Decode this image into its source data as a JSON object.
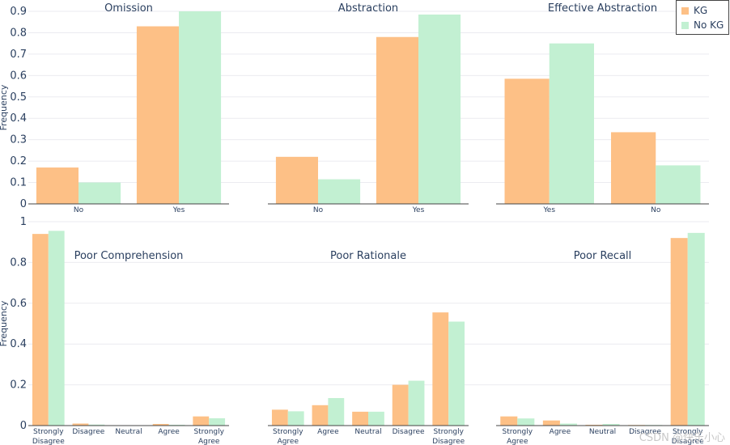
{
  "colors": {
    "kg": "#fdc086",
    "nokg": "#c2f0d2",
    "grid": "#ebebf0",
    "axis": "#2a3f5f"
  },
  "legend": {
    "kg": "KG",
    "nokg": "No KG"
  },
  "watermark": "CSDN @快乐小心",
  "chart_data": [
    {
      "type": "bar",
      "title": "Omission",
      "ylabel": "Frequency",
      "ylim": [
        0,
        0.9
      ],
      "yticks": [
        "0",
        "0.1",
        "0.2",
        "0.3",
        "0.4",
        "0.5",
        "0.6",
        "0.7",
        "0.8",
        "0.9"
      ],
      "categories": [
        "No",
        "Yes"
      ],
      "series": [
        {
          "name": "KG",
          "values": [
            0.17,
            0.83
          ]
        },
        {
          "name": "No KG",
          "values": [
            0.1,
            0.9
          ]
        }
      ]
    },
    {
      "type": "bar",
      "title": "Abstraction",
      "ylabel": "",
      "ylim": [
        0,
        0.9
      ],
      "categories": [
        "No",
        "Yes"
      ],
      "series": [
        {
          "name": "KG",
          "values": [
            0.22,
            0.78
          ]
        },
        {
          "name": "No KG",
          "values": [
            0.115,
            0.885
          ]
        }
      ]
    },
    {
      "type": "bar",
      "title": "Effective Abstraction",
      "ylabel": "",
      "ylim": [
        0,
        0.9
      ],
      "categories": [
        "Yes",
        "No"
      ],
      "series": [
        {
          "name": "KG",
          "values": [
            0.585,
            0.335
          ]
        },
        {
          "name": "No KG",
          "values": [
            0.75,
            0.18
          ]
        }
      ]
    },
    {
      "type": "bar",
      "title": "Poor Comprehension",
      "ylabel": "Frequency",
      "ylim": [
        0,
        1
      ],
      "yticks": [
        "0",
        "0.2",
        "0.4",
        "0.6",
        "0.8",
        "1"
      ],
      "categories": [
        "Strongly Disagree",
        "Disagree",
        "Neutral",
        "Agree",
        "Strongly Agree"
      ],
      "series": [
        {
          "name": "KG",
          "values": [
            0.94,
            0.01,
            0.0,
            0.008,
            0.045
          ]
        },
        {
          "name": "No KG",
          "values": [
            0.955,
            0.005,
            0.0,
            0.004,
            0.036
          ]
        }
      ]
    },
    {
      "type": "bar",
      "title": "Poor Rationale",
      "ylabel": "",
      "ylim": [
        0,
        1
      ],
      "categories": [
        "Strongly Agree",
        "Agree",
        "Neutral",
        "Disagree",
        "Strongly Disagree"
      ],
      "series": [
        {
          "name": "KG",
          "values": [
            0.078,
            0.1,
            0.068,
            0.2,
            0.555
          ]
        },
        {
          "name": "No KG",
          "values": [
            0.07,
            0.135,
            0.068,
            0.22,
            0.51
          ]
        }
      ]
    },
    {
      "type": "bar",
      "title": "Poor Recall",
      "ylabel": "",
      "ylim": [
        0,
        1
      ],
      "categories": [
        "Strongly Agree",
        "Agree",
        "Neutral",
        "Disagree",
        "Strongly Disagree"
      ],
      "series": [
        {
          "name": "KG",
          "values": [
            0.045,
            0.025,
            0.004,
            0.003,
            0.92
          ]
        },
        {
          "name": "No KG",
          "values": [
            0.035,
            0.01,
            0.008,
            0.003,
            0.945
          ]
        }
      ]
    }
  ]
}
